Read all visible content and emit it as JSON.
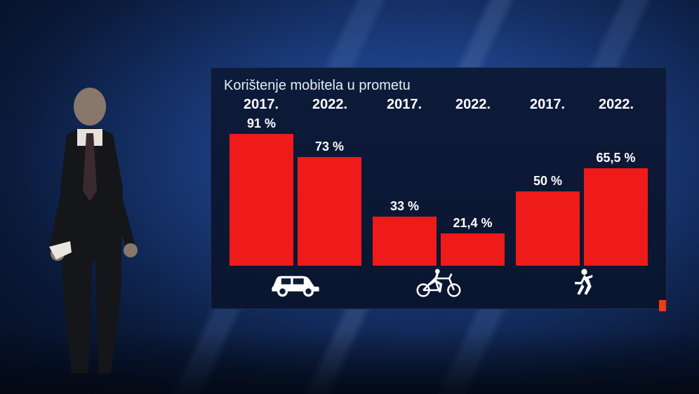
{
  "chart": {
    "type": "bar",
    "title": "Korištenje mobitela u prometu",
    "title_color": "#e8ecf5",
    "title_fontsize": 20,
    "panel_bg_top": "#0d1b3a",
    "panel_bg_bottom": "#0a1530",
    "panel_border": "#1e2d52",
    "bar_color": "#ef1a1a",
    "label_color": "#ffffff",
    "year_fontsize": 20,
    "value_fontsize": 18,
    "bar_max_percent": 100,
    "groups": [
      {
        "icon": "car",
        "years": [
          {
            "year": "2017.",
            "value": 91,
            "label": "91 %"
          },
          {
            "year": "2022.",
            "value": 73,
            "label": "73 %"
          }
        ]
      },
      {
        "icon": "bicycle",
        "years": [
          {
            "year": "2017.",
            "value": 33,
            "label": "33 %"
          },
          {
            "year": "2022.",
            "value": 21.4,
            "label": "21,4 %"
          }
        ]
      },
      {
        "icon": "pedestrian",
        "years": [
          {
            "year": "2017.",
            "value": 50,
            "label": "50 %"
          },
          {
            "year": "2022.",
            "value": 65.5,
            "label": "65,5 %"
          }
        ]
      }
    ]
  },
  "background": {
    "gradient_center": "#2a5bb8",
    "gradient_mid": "#1a3a7a",
    "gradient_outer": "#0a1a3a",
    "accent_color": "#ef3a1a"
  }
}
